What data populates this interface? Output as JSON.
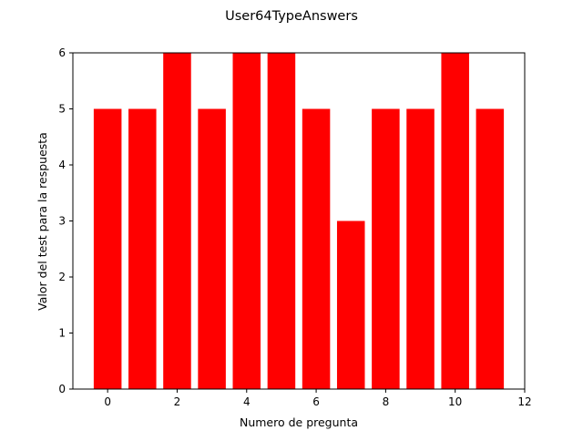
{
  "chart_data": {
    "type": "bar",
    "title": "User64TypeAnswers",
    "xlabel": "Numero de pregunta",
    "ylabel": "Valor del test para la respuesta",
    "x": [
      0,
      1,
      2,
      3,
      4,
      5,
      6,
      7,
      8,
      9,
      10,
      11
    ],
    "values": [
      5,
      5,
      6,
      5,
      6,
      6,
      5,
      3,
      5,
      5,
      6,
      5
    ],
    "bar_color": "#ff0000",
    "xlim": [
      -1,
      12
    ],
    "ylim": [
      0,
      6
    ],
    "xticks": [
      "0",
      "2",
      "4",
      "6",
      "8",
      "10",
      "12"
    ],
    "yticks": [
      "0",
      "1",
      "2",
      "3",
      "4",
      "5",
      "6"
    ],
    "grid": false,
    "legend": null
  }
}
